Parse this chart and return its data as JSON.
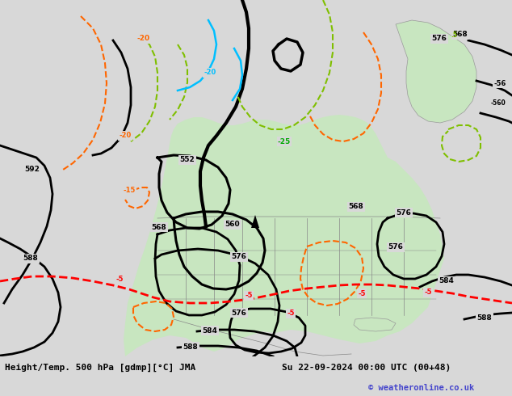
{
  "title_left": "Height/Temp. 500 hPa [gdmp][°C] JMA",
  "title_right": "Su 22-09-2024 00:00 UTC (00+48)",
  "copyright": "© weatheronline.co.uk",
  "bg_color": "#d8d8d8",
  "land_color": "#c8e6c0",
  "water_color": "#d8d8d8",
  "height_contour_color": "#000000",
  "temp_neg_color": "#ff6600",
  "temp_pos_color": "#7fbf00",
  "temp_zero_color": "#ff0000",
  "temp_cold_color": "#00bfff",
  "fig_width": 6.34,
  "fig_height": 4.9,
  "dpi": 100
}
